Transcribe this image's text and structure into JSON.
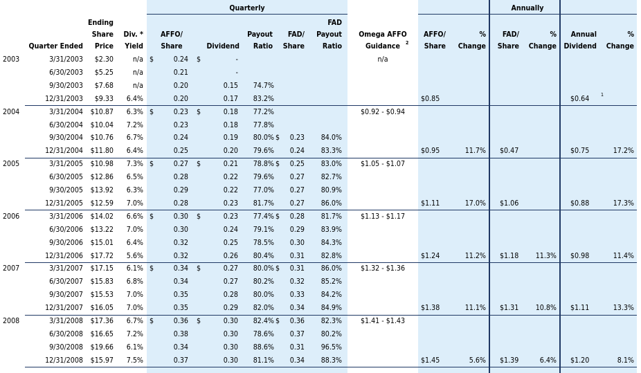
{
  "header": {
    "quarterly_title": "Quarterly",
    "annually_title": "Annually",
    "columns": {
      "quarter": [
        "Quarter Ended"
      ],
      "price": [
        "Ending",
        "Share",
        "Price"
      ],
      "yield": [
        "Div. *",
        "Yield"
      ],
      "affo": [
        "AFFO/",
        "Share"
      ],
      "dividend": [
        "Dividend"
      ],
      "payout": [
        "Payout",
        "Ratio"
      ],
      "fad": [
        "FAD/",
        "Share"
      ],
      "fadpayout": [
        "FAD",
        "Payout",
        "Ratio"
      ],
      "guidance": [
        "Omega AFFO",
        "Guidance"
      ],
      "a_affo": [
        "AFFO/",
        "Share"
      ],
      "a_affo_chg": [
        "%",
        "Change"
      ],
      "a_fad": [
        "FAD/",
        "Share"
      ],
      "a_fad_chg": [
        "%",
        "Change"
      ],
      "a_div": [
        "Annual",
        "Dividend"
      ],
      "a_div_chg": [
        "%",
        "Change"
      ]
    },
    "guidance_footnote": "2"
  },
  "years": [
    {
      "year": "2003",
      "guidance": "n/a",
      "rows": [
        {
          "date": "3/31/2003",
          "price": "$2.30",
          "yield": "n/a",
          "affo_cur": "$",
          "affo": "0.24",
          "div_cur": "$",
          "div": "-",
          "payout": "",
          "fad_cur": "",
          "fad": "",
          "fadpayout": ""
        },
        {
          "date": "6/30/2003",
          "price": "$5.25",
          "yield": "n/a",
          "affo_cur": "",
          "affo": "0.21",
          "div_cur": "",
          "div": "-",
          "payout": "",
          "fad_cur": "",
          "fad": "",
          "fadpayout": ""
        },
        {
          "date": "9/30/2003",
          "price": "$7.68",
          "yield": "n/a",
          "affo_cur": "",
          "affo": "0.20",
          "div_cur": "",
          "div": "0.15",
          "payout": "74.7%",
          "fad_cur": "",
          "fad": "",
          "fadpayout": ""
        },
        {
          "date": "12/31/2003",
          "price": "$9.33",
          "yield": "6.4%",
          "affo_cur": "",
          "affo": "0.20",
          "div_cur": "",
          "div": "0.17",
          "payout": "83.2%",
          "fad_cur": "",
          "fad": "",
          "fadpayout": ""
        }
      ],
      "annual": {
        "affo": "$0.85",
        "affo_chg": "",
        "fad": "",
        "fad_chg": "",
        "div": "$0.64",
        "div_note": "1",
        "div_chg": ""
      }
    },
    {
      "year": "2004",
      "guidance": "$0.92 - $0.94",
      "rows": [
        {
          "date": "3/31/2004",
          "price": "$10.87",
          "yield": "6.3%",
          "affo_cur": "$",
          "affo": "0.23",
          "div_cur": "$",
          "div": "0.18",
          "payout": "77.2%",
          "fad_cur": "",
          "fad": "",
          "fadpayout": ""
        },
        {
          "date": "6/30/2004",
          "price": "$10.04",
          "yield": "7.2%",
          "affo_cur": "",
          "affo": "0.23",
          "div_cur": "",
          "div": "0.18",
          "payout": "77.8%",
          "fad_cur": "",
          "fad": "",
          "fadpayout": ""
        },
        {
          "date": "9/30/2004",
          "price": "$10.76",
          "yield": "6.7%",
          "affo_cur": "",
          "affo": "0.24",
          "div_cur": "",
          "div": "0.19",
          "payout": "80.0%",
          "fad_cur": "$",
          "fad": "0.23",
          "fadpayout": "84.0%"
        },
        {
          "date": "12/31/2004",
          "price": "$11.80",
          "yield": "6.4%",
          "affo_cur": "",
          "affo": "0.25",
          "div_cur": "",
          "div": "0.20",
          "payout": "79.6%",
          "fad_cur": "",
          "fad": "0.24",
          "fadpayout": "83.3%"
        }
      ],
      "annual": {
        "affo": "$0.95",
        "affo_chg": "11.7%",
        "fad": "$0.47",
        "fad_chg": "",
        "div": "$0.75",
        "div_note": "",
        "div_chg": "17.2%"
      }
    },
    {
      "year": "2005",
      "guidance": "$1.05 - $1.07",
      "rows": [
        {
          "date": "3/31/2005",
          "price": "$10.98",
          "yield": "7.3%",
          "affo_cur": "$",
          "affo": "0.27",
          "div_cur": "$",
          "div": "0.21",
          "payout": "78.8%",
          "fad_cur": "$",
          "fad": "0.25",
          "fadpayout": "83.0%"
        },
        {
          "date": "6/30/2005",
          "price": "$12.86",
          "yield": "6.5%",
          "affo_cur": "",
          "affo": "0.28",
          "div_cur": "",
          "div": "0.22",
          "payout": "79.6%",
          "fad_cur": "",
          "fad": "0.27",
          "fadpayout": "82.7%"
        },
        {
          "date": "9/30/2005",
          "price": "$13.92",
          "yield": "6.3%",
          "affo_cur": "",
          "affo": "0.29",
          "div_cur": "",
          "div": "0.22",
          "payout": "77.0%",
          "fad_cur": "",
          "fad": "0.27",
          "fadpayout": "80.9%"
        },
        {
          "date": "12/31/2005",
          "price": "$12.59",
          "yield": "7.0%",
          "affo_cur": "",
          "affo": "0.28",
          "div_cur": "",
          "div": "0.23",
          "payout": "81.7%",
          "fad_cur": "",
          "fad": "0.27",
          "fadpayout": "86.0%"
        }
      ],
      "annual": {
        "affo": "$1.11",
        "affo_chg": "17.0%",
        "fad": "$1.06",
        "fad_chg": "",
        "div": "$0.88",
        "div_note": "",
        "div_chg": "17.3%"
      }
    },
    {
      "year": "2006",
      "guidance": "$1.13 - $1.17",
      "rows": [
        {
          "date": "3/31/2006",
          "price": "$14.02",
          "yield": "6.6%",
          "affo_cur": "$",
          "affo": "0.30",
          "div_cur": "$",
          "div": "0.23",
          "payout": "77.4%",
          "fad_cur": "$",
          "fad": "0.28",
          "fadpayout": "81.7%"
        },
        {
          "date": "6/30/2006",
          "price": "$13.22",
          "yield": "7.0%",
          "affo_cur": "",
          "affo": "0.30",
          "div_cur": "",
          "div": "0.24",
          "payout": "79.1%",
          "fad_cur": "",
          "fad": "0.29",
          "fadpayout": "83.9%"
        },
        {
          "date": "9/30/2006",
          "price": "$15.01",
          "yield": "6.4%",
          "affo_cur": "",
          "affo": "0.32",
          "div_cur": "",
          "div": "0.25",
          "payout": "78.5%",
          "fad_cur": "",
          "fad": "0.30",
          "fadpayout": "84.3%"
        },
        {
          "date": "12/31/2006",
          "price": "$17.72",
          "yield": "5.6%",
          "affo_cur": "",
          "affo": "0.32",
          "div_cur": "",
          "div": "0.26",
          "payout": "80.4%",
          "fad_cur": "",
          "fad": "0.31",
          "fadpayout": "82.8%"
        }
      ],
      "annual": {
        "affo": "$1.24",
        "affo_chg": "11.2%",
        "fad": "$1.18",
        "fad_chg": "11.3%",
        "div": "$0.98",
        "div_note": "",
        "div_chg": "11.4%"
      }
    },
    {
      "year": "2007",
      "guidance": "$1.32 - $1.36",
      "rows": [
        {
          "date": "3/31/2007",
          "price": "$17.15",
          "yield": "6.1%",
          "affo_cur": "$",
          "affo": "0.34",
          "div_cur": "$",
          "div": "0.27",
          "payout": "80.0%",
          "fad_cur": "$",
          "fad": "0.31",
          "fadpayout": "86.0%"
        },
        {
          "date": "6/30/2007",
          "price": "$15.83",
          "yield": "6.8%",
          "affo_cur": "",
          "affo": "0.34",
          "div_cur": "",
          "div": "0.27",
          "payout": "80.2%",
          "fad_cur": "",
          "fad": "0.32",
          "fadpayout": "85.2%"
        },
        {
          "date": "9/30/2007",
          "price": "$15.53",
          "yield": "7.0%",
          "affo_cur": "",
          "affo": "0.35",
          "div_cur": "",
          "div": "0.28",
          "payout": "80.0%",
          "fad_cur": "",
          "fad": "0.33",
          "fadpayout": "84.2%"
        },
        {
          "date": "12/31/2007",
          "price": "$16.05",
          "yield": "7.0%",
          "affo_cur": "",
          "affo": "0.35",
          "div_cur": "",
          "div": "0.29",
          "payout": "82.0%",
          "fad_cur": "",
          "fad": "0.34",
          "fadpayout": "84.9%"
        }
      ],
      "annual": {
        "affo": "$1.38",
        "affo_chg": "11.1%",
        "fad": "$1.31",
        "fad_chg": "10.8%",
        "div": "$1.11",
        "div_note": "",
        "div_chg": "13.3%"
      }
    },
    {
      "year": "2008",
      "guidance": "$1.41 - $1.43",
      "rows": [
        {
          "date": "3/31/2008",
          "price": "$17.36",
          "yield": "6.7%",
          "affo_cur": "$",
          "affo": "0.36",
          "div_cur": "$",
          "div": "0.30",
          "payout": "82.4%",
          "fad_cur": "$",
          "fad": "0.36",
          "fadpayout": "82.3%"
        },
        {
          "date": "6/30/2008",
          "price": "$16.65",
          "yield": "7.2%",
          "affo_cur": "",
          "affo": "0.38",
          "div_cur": "",
          "div": "0.30",
          "payout": "78.6%",
          "fad_cur": "",
          "fad": "0.37",
          "fadpayout": "80.2%"
        },
        {
          "date": "9/30/2008",
          "price": "$19.66",
          "yield": "6.1%",
          "affo_cur": "",
          "affo": "0.34",
          "div_cur": "",
          "div": "0.30",
          "payout": "88.6%",
          "fad_cur": "",
          "fad": "0.31",
          "fadpayout": "96.5%"
        },
        {
          "date": "12/31/2008",
          "price": "$15.97",
          "yield": "7.5%",
          "affo_cur": "",
          "affo": "0.37",
          "div_cur": "",
          "div": "0.30",
          "payout": "81.1%",
          "fad_cur": "",
          "fad": "0.34",
          "fadpayout": "88.3%"
        }
      ],
      "annual": {
        "affo": "$1.45",
        "affo_chg": "5.6%",
        "fad": "$1.39",
        "fad_chg": "6.4%",
        "div": "$1.20",
        "div_note": "",
        "div_chg": "8.1%"
      }
    }
  ],
  "colors": {
    "band": "#ddeefa",
    "rule": "#1f3864",
    "text": "#000000"
  }
}
